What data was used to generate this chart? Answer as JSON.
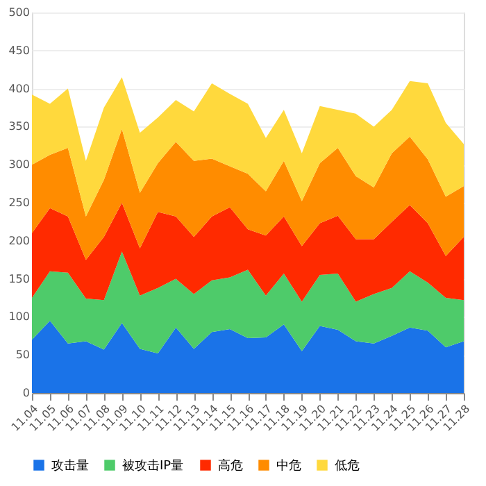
{
  "chart_data": {
    "type": "area",
    "stacked": true,
    "categories": [
      "11.04",
      "11.05",
      "11.06",
      "11.07",
      "11.08",
      "11.09",
      "11.10",
      "11.11",
      "11.12",
      "11.13",
      "11.14",
      "11.15",
      "11.16",
      "11.17",
      "11.18",
      "11.19",
      "11.20",
      "11.21",
      "11.22",
      "11.23",
      "11.24",
      "11.25",
      "11.26",
      "11.27",
      "11.28"
    ],
    "series": [
      {
        "name": "攻击量",
        "color": "#1a73e8",
        "values": [
          70,
          95,
          65,
          68,
          57,
          92,
          58,
          52,
          86,
          58,
          80,
          84,
          72,
          73,
          90,
          55,
          88,
          83,
          68,
          65,
          75,
          86,
          82,
          60,
          68
        ]
      },
      {
        "name": "被攻击IP量",
        "color": "#4ecb6a",
        "values": [
          55,
          65,
          93,
          56,
          65,
          94,
          70,
          86,
          64,
          72,
          68,
          68,
          90,
          55,
          67,
          65,
          67,
          74,
          52,
          65,
          63,
          74,
          63,
          65,
          54
        ]
      },
      {
        "name": "高危",
        "color": "#ff2a00",
        "values": [
          85,
          83,
          74,
          51,
          83,
          64,
          62,
          100,
          82,
          75,
          84,
          92,
          53,
          79,
          75,
          73,
          68,
          76,
          82,
          72,
          87,
          87,
          78,
          55,
          83
        ]
      },
      {
        "name": "中危",
        "color": "#ff8c00",
        "values": [
          90,
          70,
          90,
          57,
          75,
          97,
          73,
          64,
          98,
          100,
          76,
          54,
          73,
          58,
          73,
          59,
          79,
          89,
          83,
          68,
          90,
          90,
          84,
          78,
          67
        ]
      },
      {
        "name": "低危",
        "color": "#ffd93d",
        "values": [
          92,
          67,
          78,
          73,
          95,
          68,
          79,
          60,
          55,
          65,
          99,
          95,
          92,
          70,
          67,
          63,
          75,
          50,
          82,
          80,
          57,
          73,
          100,
          97,
          55
        ]
      }
    ],
    "ylim": [
      0,
      500
    ],
    "yticks": [
      0,
      50,
      100,
      150,
      200,
      250,
      300,
      350,
      400,
      450,
      500
    ],
    "grid": "y",
    "legend": "bottom"
  }
}
